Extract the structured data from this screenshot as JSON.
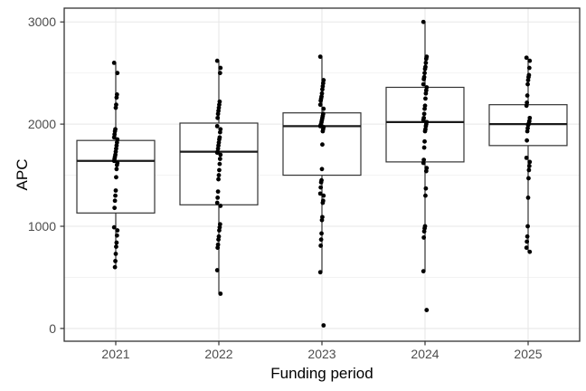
{
  "chart_data": {
    "type": "boxplot",
    "title": "",
    "xlabel": "Funding period",
    "ylabel": "APC",
    "categories": [
      "2021",
      "2022",
      "2023",
      "2024",
      "2025"
    ],
    "y_major_ticks": [
      0,
      1000,
      2000,
      3000
    ],
    "y_minor_ticks": [
      500,
      1500,
      2500
    ],
    "ylim": [
      -125,
      3135
    ],
    "grid": "major-and-minor-horizontal, major-vertical-at-categories",
    "legend": "none",
    "series": [
      {
        "category": "2021",
        "box": {
          "whisker_low": 600,
          "q1": 1130,
          "median": 1640,
          "q3": 1840,
          "whisker_high": 2600
        },
        "points": [
          2600,
          2500,
          2290,
          2260,
          2190,
          2160,
          1950,
          1930,
          1900,
          1870,
          1850,
          1820,
          1790,
          1760,
          1730,
          1700,
          1680,
          1660,
          1640,
          1620,
          1600,
          1560,
          1480,
          1350,
          1300,
          1250,
          1180,
          990,
          960,
          910,
          840,
          800,
          730,
          660,
          600
        ]
      },
      {
        "category": "2022",
        "box": {
          "whisker_low": 340,
          "q1": 1210,
          "median": 1730,
          "q3": 2010,
          "whisker_high": 2620
        },
        "points": [
          2620,
          2550,
          2500,
          2220,
          2190,
          2160,
          2130,
          2100,
          2060,
          1980,
          1950,
          1920,
          1870,
          1850,
          1820,
          1790,
          1760,
          1730,
          1720,
          1700,
          1660,
          1610,
          1550,
          1500,
          1460,
          1340,
          1280,
          1230,
          1200,
          1020,
          990,
          960,
          900,
          870,
          820,
          790,
          570,
          340
        ]
      },
      {
        "category": "2023",
        "box": {
          "whisker_low": 550,
          "q1": 1500,
          "median": 1980,
          "q3": 2110,
          "whisker_high": 2660
        },
        "points": [
          2660,
          2430,
          2400,
          2370,
          2340,
          2300,
          2270,
          2250,
          2230,
          2190,
          2150,
          2100,
          2080,
          2060,
          2040,
          2020,
          2000,
          1990,
          1980,
          1970,
          1950,
          1930,
          1800,
          1560,
          1450,
          1430,
          1380,
          1320,
          1300,
          1250,
          1230,
          1090,
          1060,
          930,
          870,
          810,
          550,
          30
        ]
      },
      {
        "category": "2024",
        "box": {
          "whisker_low": 560,
          "q1": 1630,
          "median": 2020,
          "q3": 2360,
          "whisker_high": 3000
        },
        "points": [
          3000,
          2660,
          2640,
          2600,
          2560,
          2540,
          2500,
          2460,
          2440,
          2390,
          2360,
          2330,
          2300,
          2250,
          2180,
          2150,
          2100,
          2060,
          2040,
          2020,
          2000,
          1980,
          1950,
          1930,
          1830,
          1770,
          1650,
          1620,
          1570,
          1540,
          1370,
          1300,
          1000,
          980,
          950,
          890,
          560,
          180
        ]
      },
      {
        "category": "2025",
        "box": {
          "whisker_low": 750,
          "q1": 1790,
          "median": 2000,
          "q3": 2190,
          "whisker_high": 2650
        },
        "points": [
          2650,
          2620,
          2550,
          2480,
          2460,
          2430,
          2390,
          2280,
          2210,
          2180,
          2060,
          2030,
          2010,
          2000,
          1990,
          1960,
          1930,
          1840,
          1670,
          1630,
          1590,
          1550,
          1470,
          1280,
          1000,
          900,
          850,
          790,
          750
        ]
      }
    ],
    "colors": {
      "background": "#ffffff",
      "panel_border": "#333333",
      "grid_major": "#e7e7e7",
      "grid_minor": "#f3f3f3",
      "box_stroke": "#333333",
      "box_fill": "#ffffff",
      "median_line": "#1a1a1a",
      "point": "#000000",
      "tick_mark": "#333333",
      "tick_label": "#4d4d4d",
      "axis_title": "#000000"
    }
  }
}
